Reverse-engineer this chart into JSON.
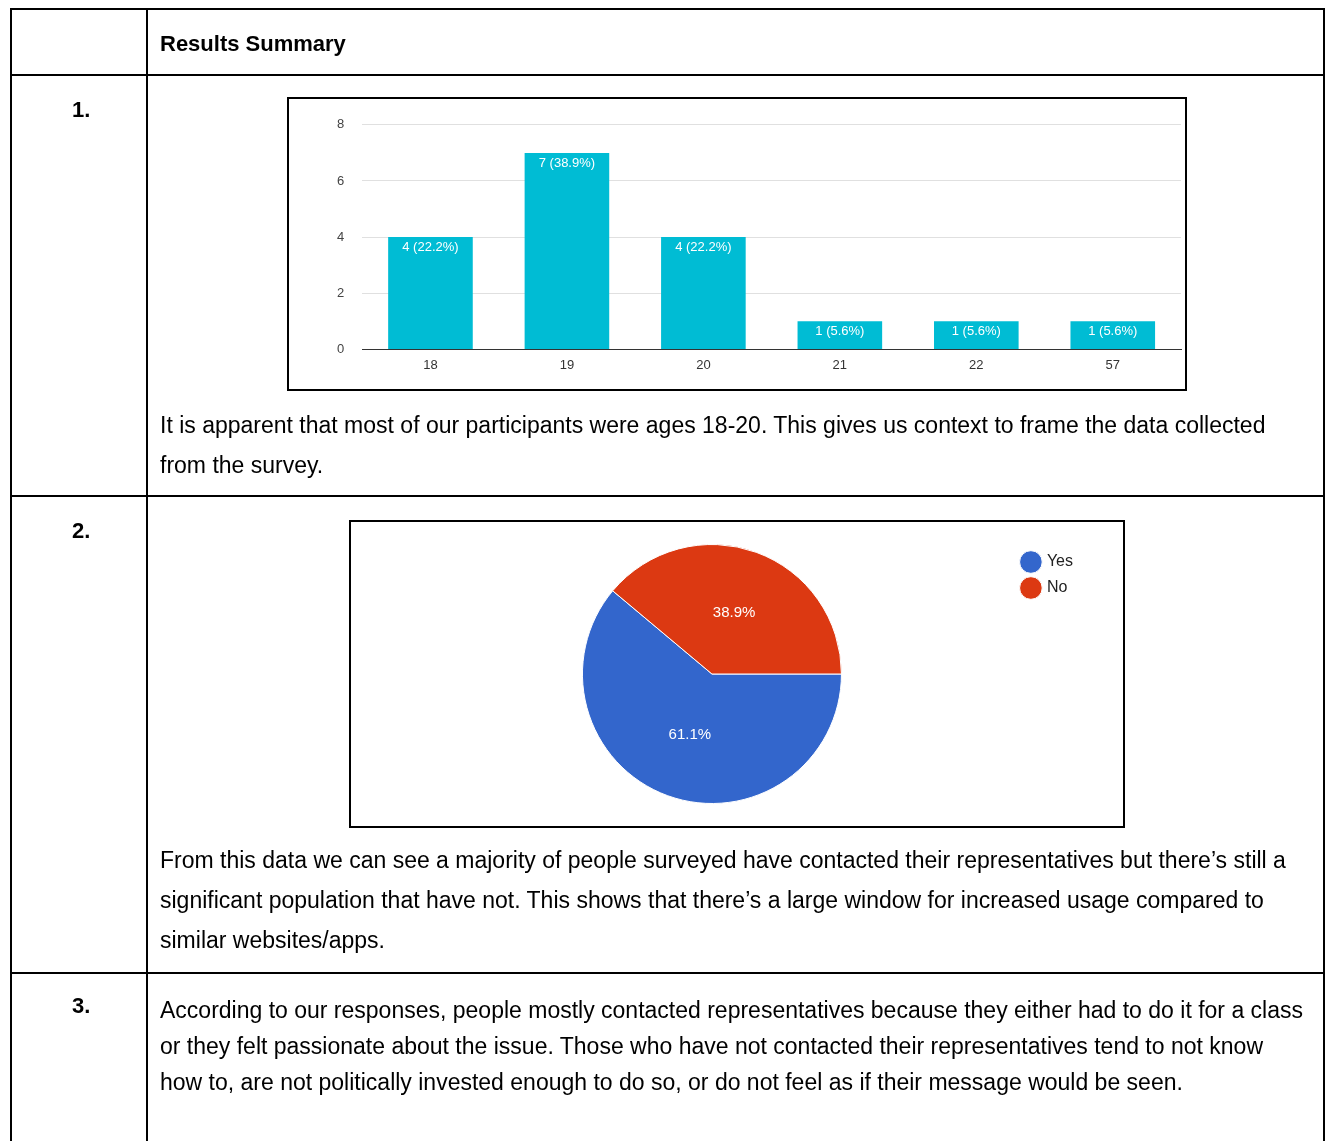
{
  "chart_data": [
    {
      "type": "bar",
      "title": "Results Summary",
      "categories": [
        "18",
        "19",
        "20",
        "21",
        "22",
        "57"
      ],
      "values": [
        4,
        7,
        4,
        1,
        1,
        1
      ],
      "color": "#00bcd4",
      "value_labels": [
        "4 (22.2%)",
        "7 (38.9%)",
        "4 (22.2%)",
        "1 (5.6%)",
        "1 (5.6%)",
        "1 (5.6%)"
      ],
      "ylim": [
        0,
        8
      ],
      "yticks": [
        0,
        2,
        4,
        6,
        8
      ],
      "grid": "y",
      "legend": false,
      "annotations": [
        "1.",
        "It is apparent that most of our participants were ages 18-20. This gives us context to frame the data collected from the survey."
      ]
    },
    {
      "type": "pie",
      "categories": [
        "Yes",
        "No"
      ],
      "values": [
        61.1,
        38.9
      ],
      "colors": [
        "#3366cc",
        "#dc3912"
      ],
      "value_labels": [
        "61.1%",
        "38.9%"
      ],
      "legend": "top right",
      "annotations": [
        "2.",
        "From this data we can see a majority of people surveyed have contacted their representatives but there’s still a significant population that have not. This shows that there’s a large window for increased usage compared to similar websites/apps."
      ]
    },
    {
      "type": "other",
      "annotations": [
        "3.",
        "According to our responses, people mostly contacted representatives because they either had to do it for a class or they felt passionate about the issue. Those who have not contacted their representatives tend to not know how to, are not politically invested enough to do so, or do not feel as if their message would be seen."
      ]
    }
  ]
}
